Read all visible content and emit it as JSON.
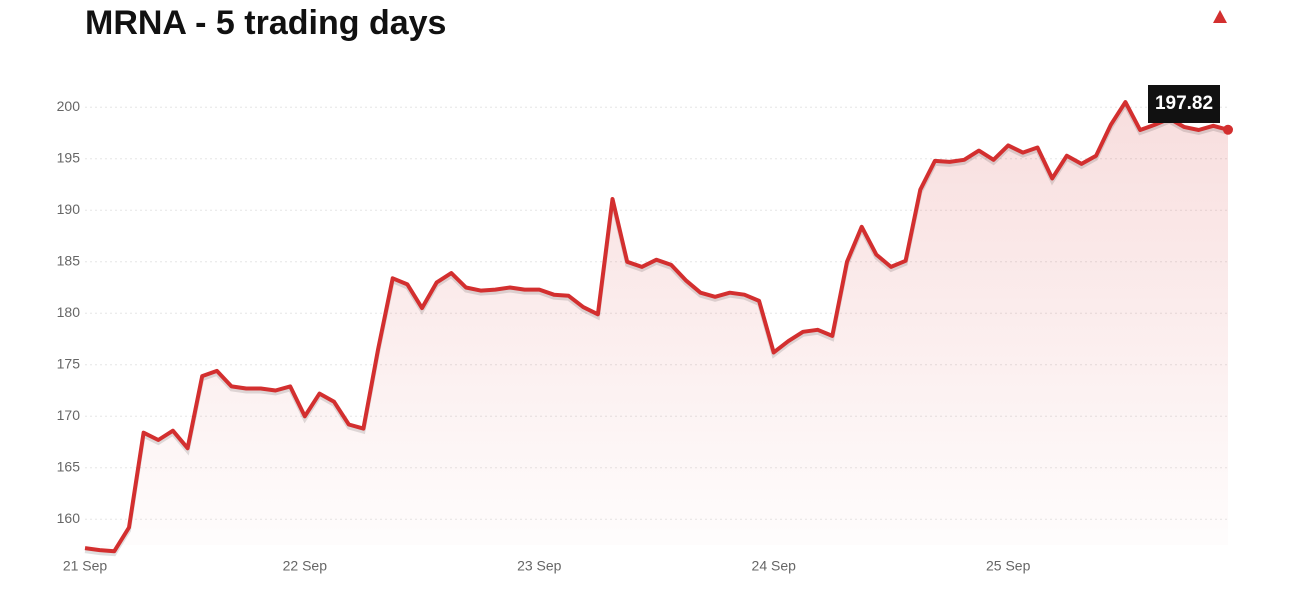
{
  "chart_data": {
    "type": "line",
    "title": "MRNA - 5 trading days",
    "categories": [
      "21 Sep",
      null,
      null,
      null,
      null,
      null,
      null,
      null,
      null,
      null,
      null,
      null,
      null,
      null,
      null,
      "22 Sep",
      null,
      null,
      null,
      null,
      null,
      null,
      null,
      null,
      null,
      null,
      null,
      null,
      null,
      null,
      null,
      "23 Sep",
      null,
      null,
      null,
      null,
      null,
      null,
      null,
      null,
      null,
      null,
      null,
      null,
      null,
      null,
      null,
      "24 Sep",
      null,
      null,
      null,
      null,
      null,
      null,
      null,
      null,
      null,
      null,
      null,
      null,
      null,
      null,
      null,
      "25 Sep",
      null,
      null,
      null,
      null,
      null,
      null,
      null,
      null,
      null,
      null,
      null,
      null,
      null,
      null,
      null
    ],
    "series": [
      {
        "name": "MRNA",
        "color": "#d32f2f",
        "values": [
          157.2,
          157.0,
          156.9,
          159.2,
          168.4,
          167.7,
          168.6,
          166.9,
          173.9,
          174.4,
          172.9,
          172.7,
          172.7,
          172.5,
          172.9,
          170.0,
          172.2,
          171.4,
          169.2,
          168.8,
          176.5,
          183.4,
          182.8,
          180.5,
          183.0,
          183.9,
          182.5,
          182.2,
          182.3,
          182.5,
          182.3,
          182.3,
          181.8,
          181.7,
          180.6,
          179.9,
          191.1,
          185.0,
          184.5,
          185.2,
          184.7,
          183.2,
          182.0,
          181.6,
          182.0,
          181.8,
          181.2,
          176.2,
          177.3,
          178.2,
          178.4,
          177.8,
          185.0,
          188.4,
          185.7,
          184.5,
          185.1,
          192.0,
          194.8,
          194.7,
          194.9,
          195.8,
          194.9,
          196.3,
          195.6,
          196.1,
          193.1,
          195.3,
          194.5,
          195.3,
          198.3,
          200.5,
          197.8,
          198.3,
          198.9,
          198.1,
          197.8,
          198.2,
          197.82
        ]
      }
    ],
    "ylim": [
      157.5,
      201
    ],
    "yticks": [
      160,
      165,
      170,
      175,
      180,
      185,
      190,
      195,
      200
    ],
    "grid": true
  }
}
